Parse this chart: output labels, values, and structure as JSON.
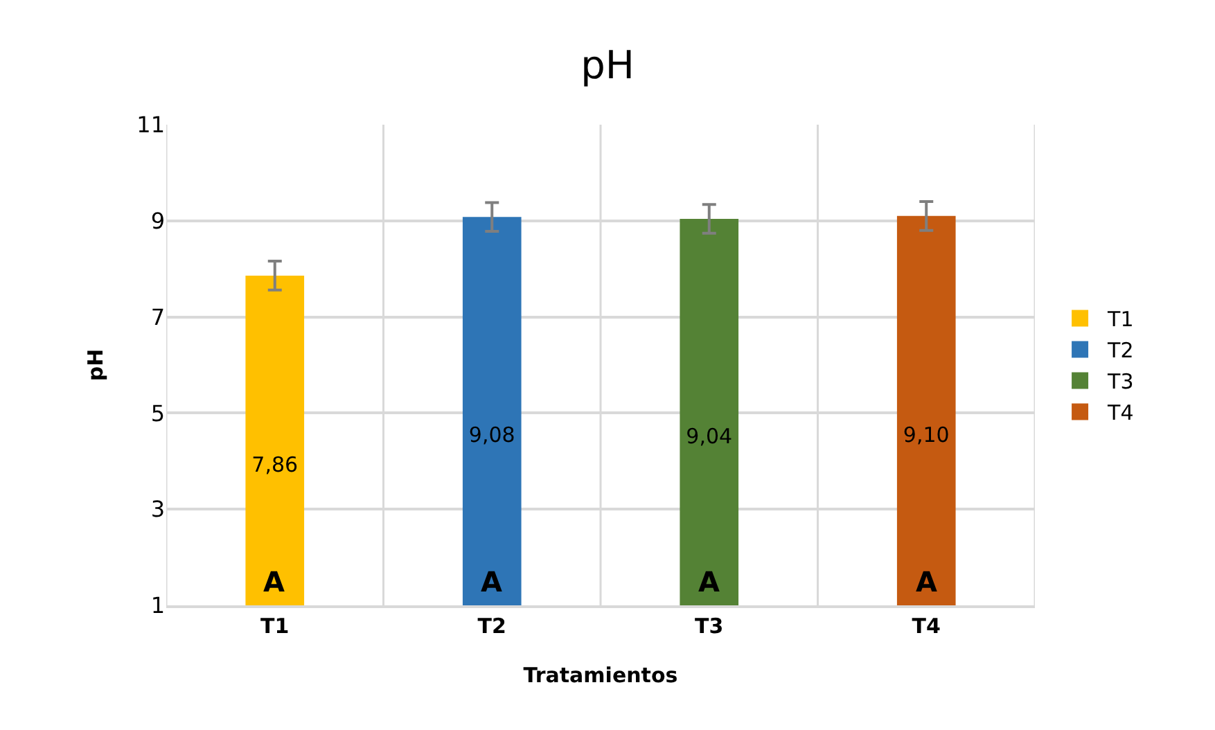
{
  "chart_data": {
    "type": "bar",
    "title": "pH",
    "xlabel": "Tratamientos",
    "ylabel": "pH",
    "categories": [
      "T1",
      "T2",
      "T3",
      "T4"
    ],
    "series": [
      {
        "name": "T1",
        "color": "#ffc000",
        "values": [
          7.86,
          null,
          null,
          null
        ],
        "errors": [
          0.3,
          null,
          null,
          null
        ],
        "value_labels": [
          "7,86",
          null,
          null,
          null
        ]
      },
      {
        "name": "T2",
        "color": "#2e75b6",
        "values": [
          null,
          9.08,
          null,
          null
        ],
        "errors": [
          null,
          0.3,
          null,
          null
        ],
        "value_labels": [
          null,
          "9,08",
          null,
          null
        ]
      },
      {
        "name": "T3",
        "color": "#548235",
        "values": [
          null,
          null,
          9.04,
          null
        ],
        "errors": [
          null,
          null,
          0.3,
          null
        ],
        "value_labels": [
          null,
          null,
          "9,04",
          null
        ]
      },
      {
        "name": "T4",
        "color": "#c55a11",
        "values": [
          null,
          null,
          null,
          9.1
        ],
        "errors": [
          null,
          null,
          null,
          0.3
        ],
        "value_labels": [
          null,
          null,
          null,
          "9,10"
        ]
      }
    ],
    "ylim": [
      1,
      11
    ],
    "yticks": [
      1,
      3,
      5,
      7,
      9,
      11
    ],
    "grid": true,
    "legend": "right",
    "annotations": [
      "A",
      "A",
      "A",
      "A"
    ]
  }
}
